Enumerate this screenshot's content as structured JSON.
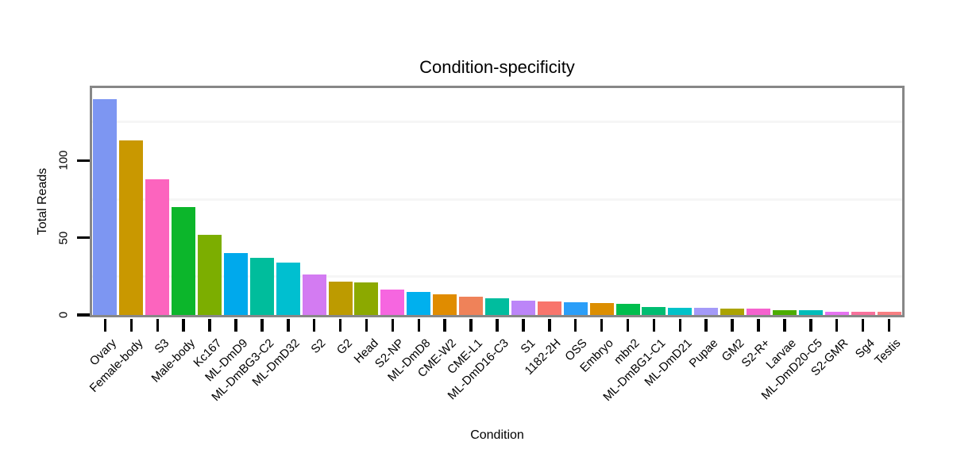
{
  "chart_data": {
    "type": "bar",
    "title": "Condition-specificity",
    "xlabel": "Condition",
    "ylabel": "Total Reads",
    "legend": "none",
    "grid": "minor-horizontal-only",
    "ylim": [
      0,
      147
    ],
    "yticks": [
      0,
      50,
      100
    ],
    "minor_gridlines": [
      25,
      75,
      125
    ],
    "categories": [
      "Ovary",
      "Female-body",
      "S3",
      "Male-body",
      "Kc167",
      "ML-DmD9",
      "ML-DmBG3-C2",
      "ML-DmD32",
      "S2",
      "G2",
      "Head",
      "S2-NP",
      "ML-DmD8",
      "CME-W2",
      "CME-L1",
      "ML-DmD16-C3",
      "S1",
      "1182-2H",
      "OSS",
      "Embryo",
      "mbn2",
      "ML-DmBG1-C1",
      "ML-DmD21",
      "Pupae",
      "GM2",
      "S2-R+",
      "Larvae",
      "ML-DmD20-C5",
      "S2-GMR",
      "Sg4",
      "Testis"
    ],
    "values": [
      140,
      113,
      88,
      70,
      52,
      40,
      37,
      34,
      26,
      21.5,
      21,
      16.5,
      15,
      13.5,
      12,
      11,
      9.5,
      8.5,
      8,
      7.5,
      7,
      5,
      4.8,
      4.5,
      4,
      4,
      3,
      3,
      2,
      1.8,
      1.8
    ],
    "bar_colors": [
      "#7D96F2",
      "#C99800",
      "#FC64BE",
      "#0CB62B",
      "#7CAE00",
      "#00A9EC",
      "#00BD9C",
      "#00BFD0",
      "#D37BF2",
      "#BD9B00",
      "#8CA900",
      "#F666E0",
      "#00B0EE",
      "#E08C00",
      "#EF8259",
      "#00BD9E",
      "#BC85F8",
      "#F8756C",
      "#2B9EF8",
      "#DC8E00",
      "#00BE4D",
      "#00BD71",
      "#00C2C9",
      "#A49AF8",
      "#ABA300",
      "#F562CE",
      "#4CAD00",
      "#00BDBA",
      "#E773F2",
      "#F8719C",
      "#F87F82"
    ],
    "colors": {
      "panel_border": "#878787",
      "gridline": "#f6f6f6",
      "tick": "#000000",
      "text": "#000000",
      "background": "#ffffff"
    }
  }
}
